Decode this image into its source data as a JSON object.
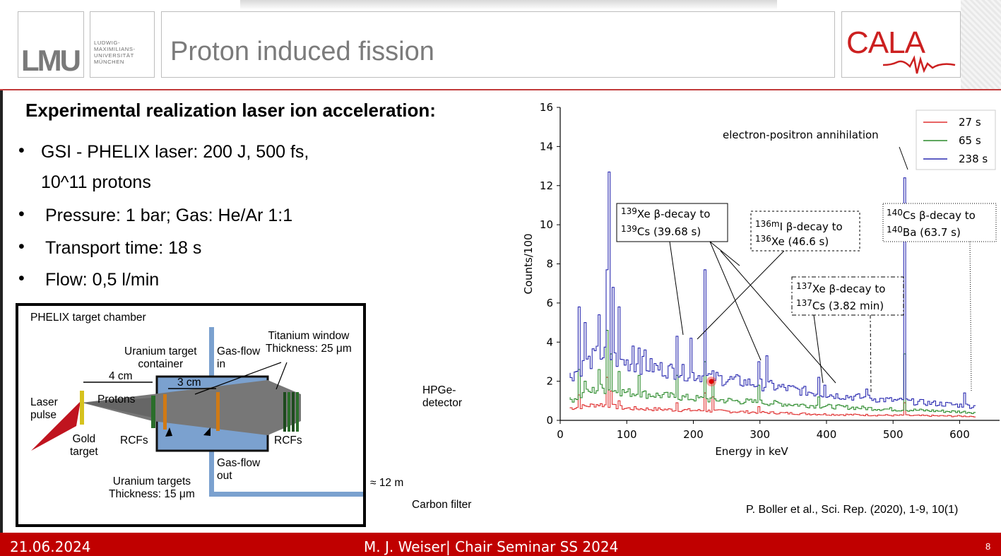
{
  "header": {
    "logo_text": "LMU",
    "university_name": "LUDWIG-\nMAXIMILIANS-\nUNIVERSITÄT\nMÜNCHEN",
    "title": "Proton induced fission",
    "partner_logo": "CALA"
  },
  "content": {
    "heading": "Experimental realization laser ion acceleration:",
    "bullets": [
      "GSI - PHELIX laser: 200 J, 500 fs,",
      "Pressure: 1 bar; Gas: He/Ar 1:1",
      "Transport time: 18 s",
      "Flow: 0,5 l/min"
    ],
    "bullet_continuation": "10^11 protons",
    "bullet_symbol": "•"
  },
  "setup": {
    "chamber_label": "PHELIX target chamber",
    "laser_label": "Laser\npulse",
    "gold_label": "Gold\ntarget",
    "protons_label": "Protons",
    "dist_4cm": "4 cm",
    "dist_3cm": "3 cm",
    "container_label": "Uranium target\ncontainer",
    "gasflow_in": "Gas-flow\nin",
    "gasflow_out": "Gas-flow\nout",
    "titanium_label": "Titanium window\nThickness: 25 μm",
    "rcfs_left": "RCFs",
    "rcfs_right": "RCFs",
    "uranium_targets": "Uranium targets\nThickness: 15 μm",
    "distance_12m": "≈ 12 m",
    "detector_label": "HPGe-\ndetector",
    "filter_label": "Carbon filter"
  },
  "chart_data": {
    "type": "line",
    "xlabel": "Energy in keV",
    "ylabel": "Counts/100",
    "xlim": [
      0,
      660
    ],
    "ylim": [
      0,
      16
    ],
    "xticks": [
      0,
      100,
      200,
      300,
      400,
      500,
      600
    ],
    "yticks": [
      0,
      2,
      4,
      6,
      8,
      10,
      12,
      14,
      16
    ],
    "legend_position": "top-right",
    "series": [
      {
        "name": "27 s",
        "color": "#e03030",
        "baseline": [
          [
            15,
            0.6
          ],
          [
            60,
            0.8
          ],
          [
            100,
            0.6
          ],
          [
            200,
            0.5
          ],
          [
            300,
            0.4
          ],
          [
            400,
            0.3
          ],
          [
            500,
            0.25
          ],
          [
            625,
            0.2
          ]
        ],
        "peaks": [
          [
            30,
            1.3
          ],
          [
            73,
            2.2
          ],
          [
            77,
            1.5
          ],
          [
            90,
            1.0
          ],
          [
            178,
            0.9
          ],
          [
            220,
            1.4
          ],
          [
            230,
            1.2
          ],
          [
            300,
            0.7
          ],
          [
            518,
            0.9
          ]
        ]
      },
      {
        "name": "65 s",
        "color": "#2a8a2a",
        "baseline": [
          [
            15,
            1.0
          ],
          [
            60,
            1.6
          ],
          [
            100,
            1.4
          ],
          [
            200,
            1.1
          ],
          [
            300,
            0.9
          ],
          [
            400,
            0.7
          ],
          [
            500,
            0.55
          ],
          [
            625,
            0.4
          ]
        ],
        "peaks": [
          [
            30,
            2.6
          ],
          [
            38,
            2.0
          ],
          [
            60,
            2.6
          ],
          [
            73,
            4.6
          ],
          [
            77,
            3.4
          ],
          [
            90,
            2.5
          ],
          [
            120,
            2.3
          ],
          [
            178,
            2.3
          ],
          [
            220,
            3.0
          ],
          [
            230,
            2.1
          ],
          [
            300,
            1.8
          ],
          [
            390,
            1.2
          ],
          [
            518,
            3.4
          ]
        ]
      },
      {
        "name": "238 s",
        "color": "#2a2ab0",
        "baseline": [
          [
            15,
            2.2
          ],
          [
            60,
            3.3
          ],
          [
            100,
            2.9
          ],
          [
            200,
            2.3
          ],
          [
            300,
            1.8
          ],
          [
            400,
            1.3
          ],
          [
            500,
            1.0
          ],
          [
            625,
            0.7
          ]
        ],
        "peaks": [
          [
            30,
            5.8
          ],
          [
            38,
            5.0
          ],
          [
            60,
            5.4
          ],
          [
            73,
            7.7
          ],
          [
            76,
            12.7
          ],
          [
            82,
            6.8
          ],
          [
            90,
            5.8
          ],
          [
            112,
            3.8
          ],
          [
            120,
            3.7
          ],
          [
            130,
            3.6
          ],
          [
            178,
            4.3
          ],
          [
            198,
            4.2
          ],
          [
            220,
            7.7
          ],
          [
            300,
            3.0
          ],
          [
            313,
            3.3
          ],
          [
            390,
            2.2
          ],
          [
            400,
            1.8
          ],
          [
            463,
            1.6
          ],
          [
            518,
            12.4
          ],
          [
            610,
            1.4
          ]
        ]
      }
    ],
    "annotations": [
      "electron-positron annihilation",
      "139Xe β-decay to 139Cs (39.68 s)",
      "136mI β-decay to 136Xe (46.6 s)",
      "137Xe β-decay to 137Cs (3.82 min)",
      "140Cs β-decay to 140Ba (63.7 s)"
    ]
  },
  "chart_text": {
    "annihilation": "electron-positron annihilation",
    "xe139_line1_sup": "139",
    "xe139_line1": "Xe β-decay to",
    "xe139_line2_sup": "139",
    "xe139_line2": "Cs (39.68 s)",
    "i136_line1_sup": "136m",
    "i136_line1": "I β-decay to",
    "i136_line2_sup": "136",
    "i136_line2": "Xe (46.6 s)",
    "xe137_line1_sup": "137",
    "xe137_line1": "Xe β-decay to",
    "xe137_line2_sup": "137",
    "xe137_line2": "Cs (3.82 min)",
    "cs140_line1_sup": "140",
    "cs140_line1": "Cs β-decay to",
    "cs140_line2_sup": "140",
    "cs140_line2": "Ba (63.7 s)"
  },
  "citation": "P. Boller et al., Sci. Rep. (2020), 1-9, 10(1)",
  "footer": {
    "date": "21.06.2024",
    "center": "M. J. Weiser| Chair Seminar SS 2024",
    "page": "8"
  }
}
